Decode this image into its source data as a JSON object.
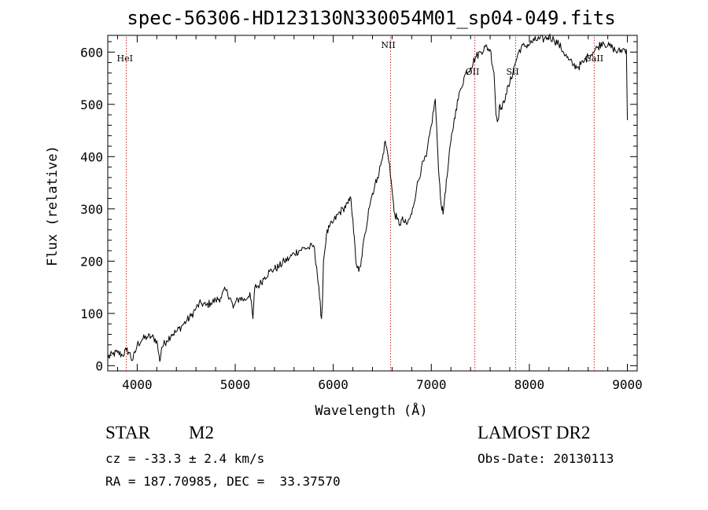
{
  "chart_data": {
    "type": "line",
    "title": "spec-56306-HD123130N330054M01_sp04-049.fits",
    "xlabel": "Wavelength (Å)",
    "ylabel": "Flux (relative)",
    "xlim": [
      3700,
      9100
    ],
    "ylim": [
      -10,
      632
    ],
    "xticks": [
      4000,
      5000,
      6000,
      7000,
      8000,
      9000
    ],
    "yticks": [
      0,
      100,
      200,
      300,
      400,
      500,
      600
    ],
    "grid": false,
    "line_color": "#000000",
    "marker_color": "#cc2020",
    "spectral_lines": [
      {
        "name": "HeI",
        "wavelength": 3889
      },
      {
        "name": "NII",
        "wavelength": 6584
      },
      {
        "name": "OII",
        "wavelength": 7444
      },
      {
        "name": "SII",
        "wavelength": 7860
      },
      {
        "name": "CaII",
        "wavelength": 8662
      }
    ],
    "series": [
      {
        "x": [
          3700,
          3750,
          3800,
          3850,
          3890,
          3920,
          3950,
          3980,
          4000,
          4050,
          4100,
          4150,
          4200,
          4230,
          4250,
          4300,
          4350,
          4400,
          4450,
          4500,
          4550,
          4600,
          4650,
          4700,
          4750,
          4800,
          4850,
          4900,
          4950,
          4980,
          5000,
          5050,
          5100,
          5150,
          5180,
          5200,
          5250,
          5300,
          5350,
          5400,
          5450,
          5500,
          5550,
          5600,
          5650,
          5700,
          5750,
          5800,
          5830,
          5860,
          5880,
          5890,
          5900,
          5930,
          5960,
          6000,
          6050,
          6100,
          6150,
          6180,
          6200,
          6230,
          6260,
          6280,
          6300,
          6330,
          6360,
          6400,
          6450,
          6500,
          6530,
          6560,
          6575,
          6600,
          6620,
          6650,
          6680,
          6700,
          6720,
          6750,
          6800,
          6850,
          6900,
          6950,
          7000,
          7040,
          7060,
          7080,
          7100,
          7120,
          7140,
          7160,
          7200,
          7250,
          7300,
          7350,
          7400,
          7450,
          7500,
          7550,
          7600,
          7640,
          7660,
          7680,
          7700,
          7720,
          7760,
          7800,
          7850,
          7900,
          7950,
          8000,
          8050,
          8100,
          8150,
          8200,
          8250,
          8300,
          8350,
          8400,
          8450,
          8500,
          8550,
          8600,
          8650,
          8700,
          8750,
          8800,
          8850,
          8900,
          8950,
          8990,
          9000
        ],
        "y": [
          15,
          22,
          25,
          20,
          30,
          25,
          10,
          25,
          40,
          50,
          55,
          55,
          48,
          8,
          35,
          48,
          60,
          65,
          75,
          85,
          95,
          110,
          120,
          115,
          120,
          125,
          130,
          145,
          130,
          110,
          120,
          130,
          125,
          140,
          90,
          150,
          155,
          170,
          180,
          185,
          190,
          200,
          205,
          215,
          220,
          225,
          225,
          230,
          190,
          130,
          90,
          120,
          200,
          250,
          265,
          275,
          290,
          300,
          310,
          320,
          280,
          200,
          180,
          190,
          225,
          255,
          300,
          330,
          360,
          395,
          430,
          400,
          385,
          335,
          295,
          280,
          270,
          280,
          275,
          270,
          290,
          340,
          380,
          400,
          460,
          510,
          430,
          360,
          310,
          290,
          330,
          360,
          430,
          490,
          530,
          560,
          570,
          590,
          600,
          610,
          605,
          560,
          480,
          470,
          500,
          490,
          520,
          540,
          575,
          605,
          612,
          615,
          622,
          625,
          625,
          630,
          624,
          615,
          600,
          585,
          575,
          572,
          580,
          592,
          600,
          610,
          620,
          612,
          608,
          600,
          605,
          605,
          470
        ]
      }
    ]
  },
  "info": {
    "class_label": "STAR",
    "subclass": "M2",
    "survey": "LAMOST DR2",
    "cz_line": "cz = -33.3 ± 2.4 km/s",
    "obs_date_line": "Obs-Date: 20130113",
    "radec_line": "RA = 187.70985, DEC =  33.37570"
  }
}
